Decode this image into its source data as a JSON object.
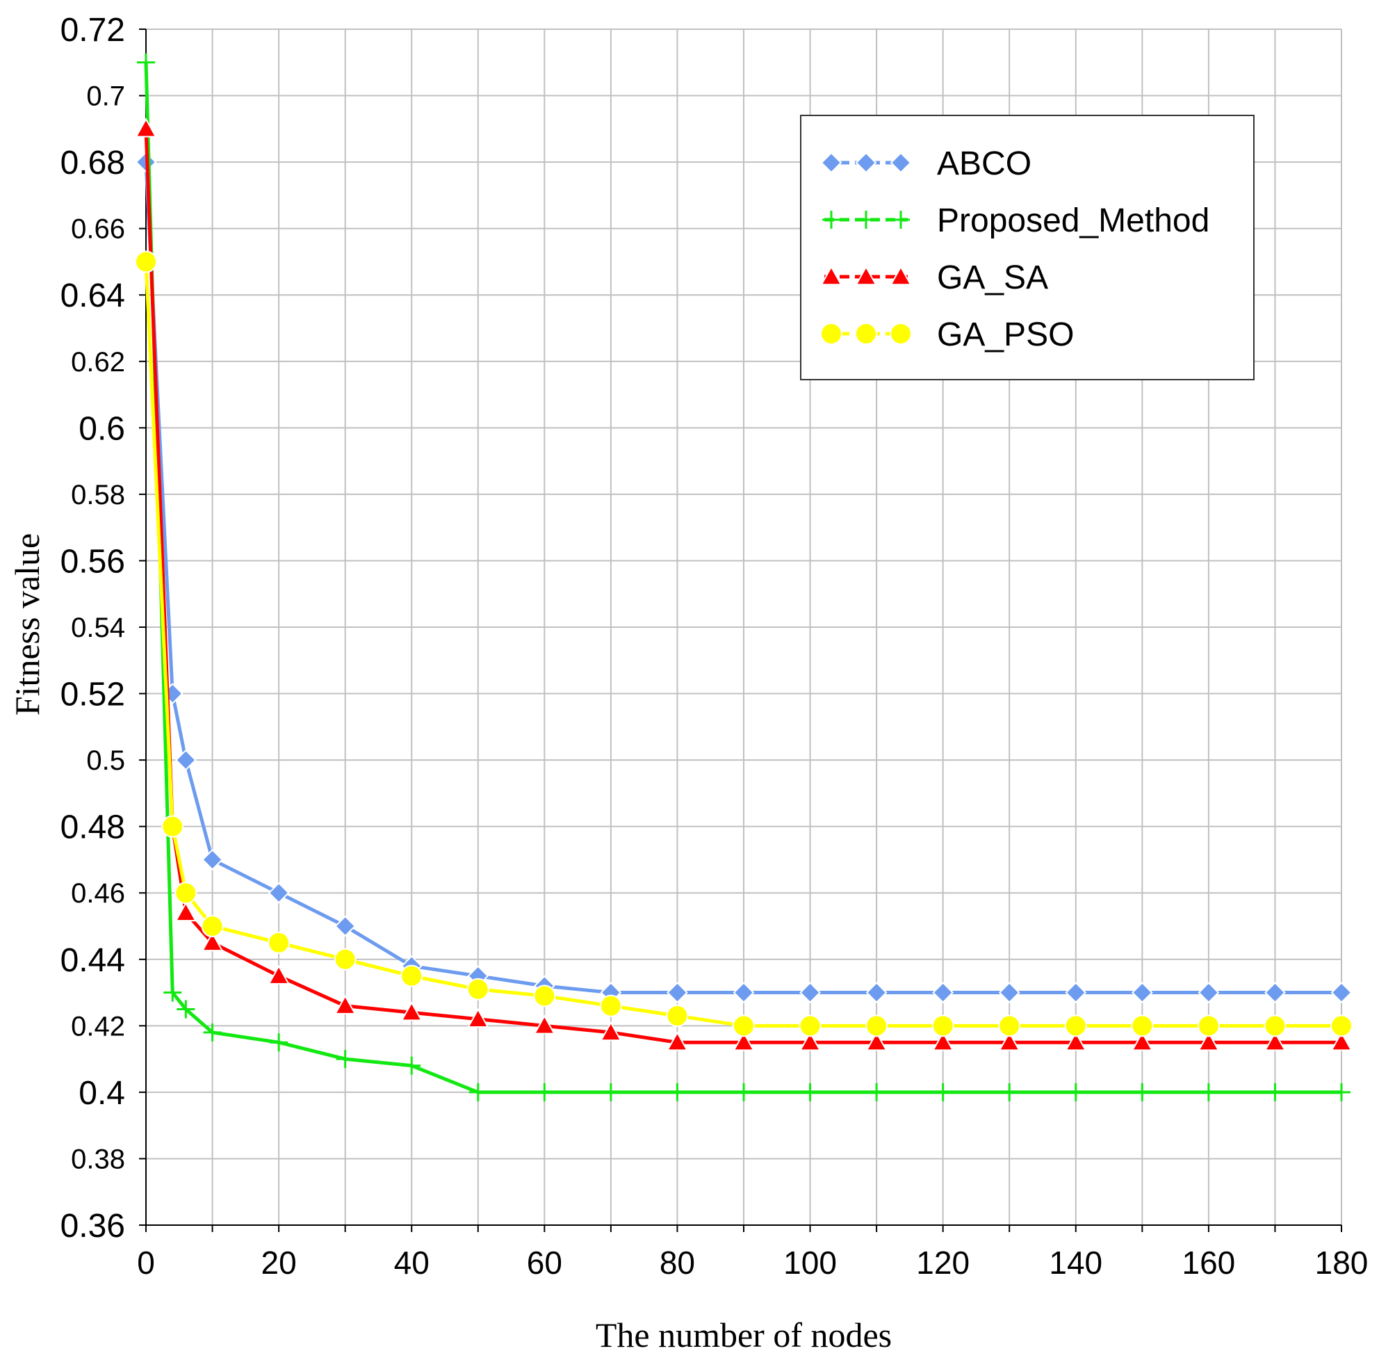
{
  "chart_data": {
    "type": "line",
    "title": "",
    "xlabel": "The number of nodes",
    "ylabel": "Fitness value",
    "xlim": [
      0,
      180
    ],
    "ylim": [
      0.36,
      0.72
    ],
    "grid": true,
    "legend_position": "top-right",
    "x_tick_labels": [
      "0",
      "20",
      "40",
      "60",
      "80",
      "100",
      "120",
      "140",
      "160",
      "180"
    ],
    "y_tick_labels": [
      "0.36",
      "0.38",
      "0.4",
      "0.42",
      "0.44",
      "0.46",
      "0.48",
      "0.5",
      "0.52",
      "0.54",
      "0.56",
      "0.58",
      "0.6",
      "0.62",
      "0.64",
      "0.66",
      "0.68",
      "0.7",
      "0.72"
    ],
    "series": [
      {
        "name": "ABCO",
        "color": "#6c9bef",
        "marker": "diamond",
        "x": [
          0,
          4,
          6,
          10,
          20,
          30,
          40,
          50,
          60,
          70,
          80,
          90,
          100,
          110,
          120,
          130,
          140,
          150,
          160,
          170,
          180
        ],
        "values": [
          0.68,
          0.52,
          0.5,
          0.47,
          0.46,
          0.45,
          0.438,
          0.435,
          0.432,
          0.43,
          0.43,
          0.43,
          0.43,
          0.43,
          0.43,
          0.43,
          0.43,
          0.43,
          0.43,
          0.43,
          0.43
        ]
      },
      {
        "name": "Proposed_Method",
        "color": "#12e812",
        "marker": "plus",
        "x": [
          0,
          4,
          6,
          10,
          20,
          30,
          40,
          50,
          60,
          70,
          80,
          90,
          100,
          110,
          120,
          130,
          140,
          150,
          160,
          170,
          180
        ],
        "values": [
          0.71,
          0.43,
          0.425,
          0.418,
          0.415,
          0.41,
          0.408,
          0.4,
          0.4,
          0.4,
          0.4,
          0.4,
          0.4,
          0.4,
          0.4,
          0.4,
          0.4,
          0.4,
          0.4,
          0.4,
          0.4
        ]
      },
      {
        "name": "GA_SA",
        "color": "#ff0000",
        "marker": "triangle",
        "x": [
          0,
          4,
          6,
          10,
          20,
          30,
          40,
          50,
          60,
          70,
          80,
          90,
          100,
          110,
          120,
          130,
          140,
          150,
          160,
          170,
          180
        ],
        "values": [
          0.69,
          0.48,
          0.454,
          0.445,
          0.435,
          0.426,
          0.424,
          0.422,
          0.42,
          0.418,
          0.415,
          0.415,
          0.415,
          0.415,
          0.415,
          0.415,
          0.415,
          0.415,
          0.415,
          0.415,
          0.415
        ]
      },
      {
        "name": "GA_PSO",
        "color": "#ffff00",
        "marker": "circle",
        "x": [
          0,
          4,
          6,
          10,
          20,
          30,
          40,
          50,
          60,
          70,
          80,
          90,
          100,
          110,
          120,
          130,
          140,
          150,
          160,
          170,
          180
        ],
        "values": [
          0.65,
          0.48,
          0.46,
          0.45,
          0.445,
          0.44,
          0.435,
          0.431,
          0.429,
          0.426,
          0.423,
          0.42,
          0.42,
          0.42,
          0.42,
          0.42,
          0.42,
          0.42,
          0.42,
          0.42,
          0.42
        ]
      }
    ]
  }
}
